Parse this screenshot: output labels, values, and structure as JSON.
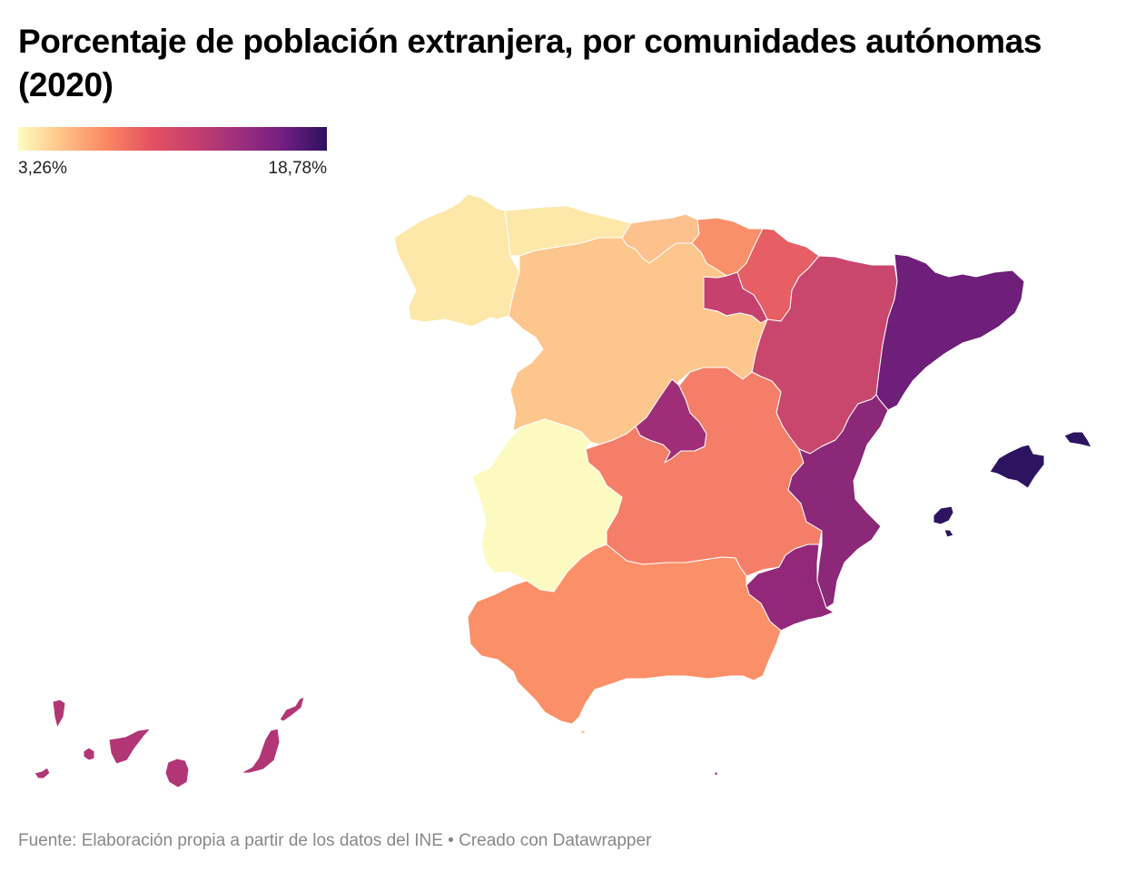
{
  "title": "Porcentaje de población extranjera, por comunidades autónomas (2020)",
  "legend": {
    "min_label": "3,26%",
    "max_label": "18,78%",
    "min_value": 3.26,
    "max_value": 18.78,
    "colors": [
      "#fcfdbf",
      "#fec287",
      "#fb8761",
      "#e65164",
      "#c5406e",
      "#9e2f7f",
      "#721f81",
      "#2d1160"
    ]
  },
  "footer": {
    "source": "Fuente: Elaboración propia a partir de los datos del INE",
    "separator": "•",
    "credit": "Creado con Datawrapper"
  },
  "regions": [
    {
      "id": "galicia",
      "name": "Galicia",
      "color": "#fde7a9"
    },
    {
      "id": "asturias",
      "name": "Asturias",
      "color": "#fde7a9"
    },
    {
      "id": "cantabria",
      "name": "Cantabria",
      "color": "#fcc18d"
    },
    {
      "id": "pais-vasco",
      "name": "País Vasco",
      "color": "#f9906a"
    },
    {
      "id": "navarra",
      "name": "Navarra",
      "color": "#e65f64"
    },
    {
      "id": "la-rioja",
      "name": "La Rioja",
      "color": "#c6416d"
    },
    {
      "id": "aragon",
      "name": "Aragón",
      "color": "#c9476d"
    },
    {
      "id": "cataluna",
      "name": "Cataluña",
      "color": "#6e1f79"
    },
    {
      "id": "castilla-y-leon",
      "name": "Castilla y León",
      "color": "#fcc68d"
    },
    {
      "id": "madrid",
      "name": "Comunidad de Madrid",
      "color": "#a02d78"
    },
    {
      "id": "castilla-la-mancha",
      "name": "Castilla-La Mancha",
      "color": "#f47e67"
    },
    {
      "id": "extremadura",
      "name": "Extremadura",
      "color": "#fcfac0"
    },
    {
      "id": "comunidad-valenciana",
      "name": "Comunidad Valenciana",
      "color": "#8b2878"
    },
    {
      "id": "murcia",
      "name": "Región de Murcia",
      "color": "#93287a"
    },
    {
      "id": "andalucia",
      "name": "Andalucía",
      "color": "#fb8f68"
    },
    {
      "id": "baleares",
      "name": "Illes Balears",
      "color": "#2d1460"
    },
    {
      "id": "canarias",
      "name": "Canarias",
      "color": "#b23676"
    },
    {
      "id": "ceuta",
      "name": "Ceuta",
      "color": "#fcb07d"
    },
    {
      "id": "melilla",
      "name": "Melilla",
      "color": "#8a2878"
    }
  ]
}
